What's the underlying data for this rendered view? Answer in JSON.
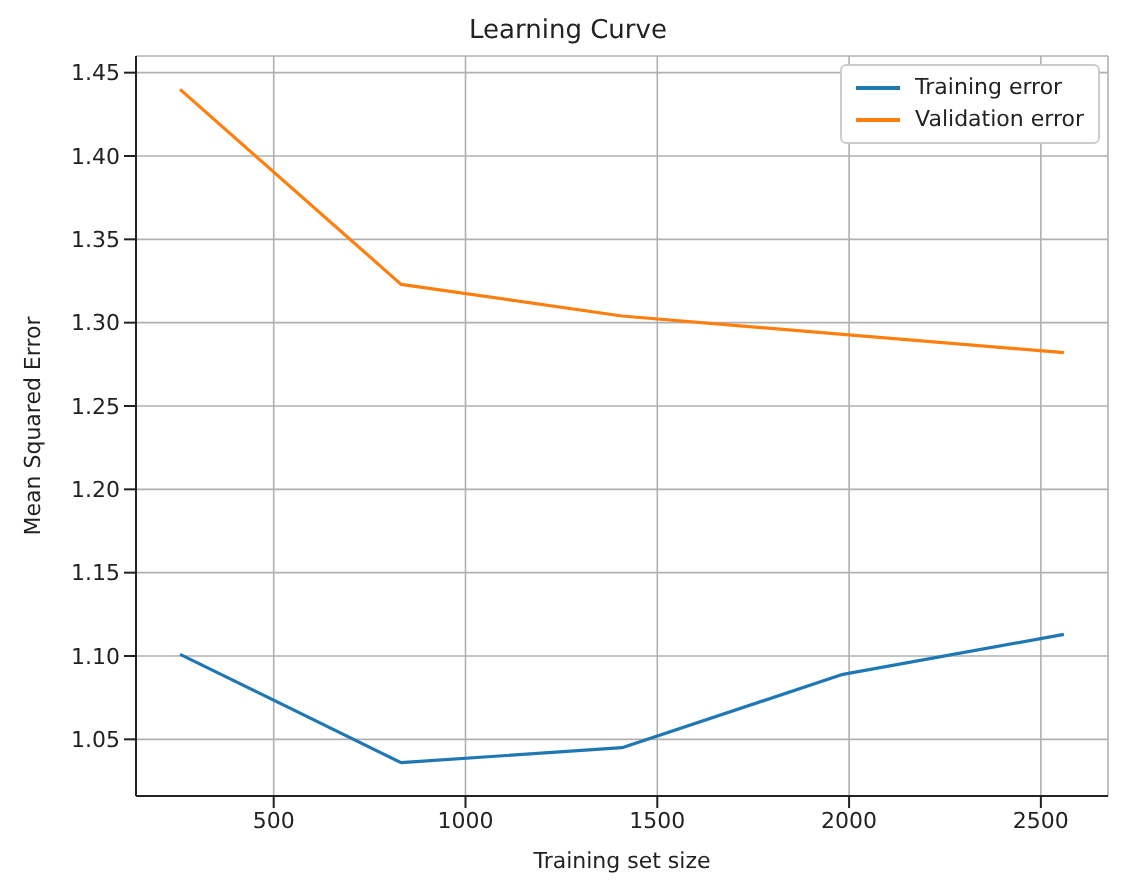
{
  "chart_data": {
    "type": "line",
    "title": "Learning Curve",
    "xlabel": "Training set size",
    "ylabel": "Mean Squared Error",
    "x": [
      256,
      832,
      1408,
      1984,
      2560
    ],
    "series": [
      {
        "name": "Training error",
        "color": "#1f77b4",
        "values": [
          1.101,
          1.036,
          1.045,
          1.089,
          1.113
        ]
      },
      {
        "name": "Validation error",
        "color": "#ff7f0e",
        "values": [
          1.44,
          1.323,
          1.304,
          1.293,
          1.282
        ]
      }
    ],
    "xlim": [
      141,
      2675
    ],
    "xticks": [
      500,
      1000,
      1500,
      2000,
      2500
    ],
    "ylim": [
      1.016,
      1.46
    ],
    "yticks": [
      1.05,
      {
        "value": 1.1,
        "label": "1.10"
      },
      1.15,
      {
        "value": 1.2,
        "label": "1.20"
      },
      1.25,
      {
        "value": 1.3,
        "label": "1.30"
      },
      1.35,
      {
        "value": 1.4,
        "label": "1.40"
      },
      1.45
    ],
    "grid": true,
    "legend": "top right",
    "marker": "none",
    "line_style": "solid"
  }
}
